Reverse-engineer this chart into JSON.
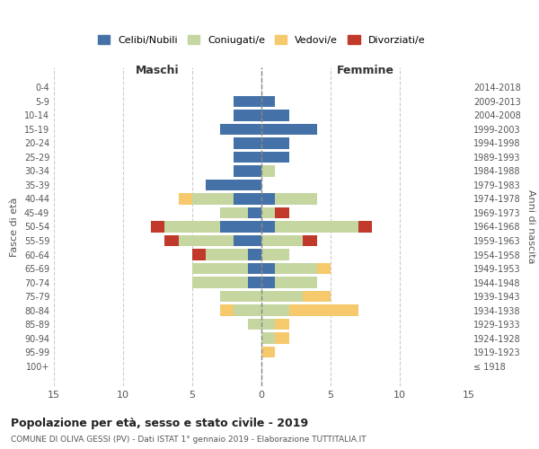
{
  "age_groups": [
    "0-4",
    "5-9",
    "10-14",
    "15-19",
    "20-24",
    "25-29",
    "30-34",
    "35-39",
    "40-44",
    "45-49",
    "50-54",
    "55-59",
    "60-64",
    "65-69",
    "70-74",
    "75-79",
    "80-84",
    "85-89",
    "90-94",
    "95-99",
    "100+"
  ],
  "birth_years": [
    "2014-2018",
    "2009-2013",
    "2004-2008",
    "1999-2003",
    "1994-1998",
    "1989-1993",
    "1984-1988",
    "1979-1983",
    "1974-1978",
    "1969-1973",
    "1964-1968",
    "1959-1963",
    "1954-1958",
    "1949-1953",
    "1944-1948",
    "1939-1943",
    "1934-1938",
    "1929-1933",
    "1924-1928",
    "1919-1923",
    "≤ 1918"
  ],
  "male": {
    "celibi": [
      0,
      2,
      2,
      3,
      2,
      2,
      2,
      4,
      2,
      1,
      3,
      2,
      1,
      1,
      1,
      0,
      0,
      0,
      0,
      0,
      0
    ],
    "coniugati": [
      0,
      0,
      0,
      0,
      0,
      0,
      0,
      0,
      3,
      2,
      4,
      4,
      3,
      4,
      4,
      3,
      2,
      1,
      0,
      0,
      0
    ],
    "vedovi": [
      0,
      0,
      0,
      0,
      0,
      0,
      0,
      0,
      1,
      0,
      0,
      0,
      0,
      0,
      0,
      0,
      1,
      0,
      0,
      0,
      0
    ],
    "divorziati": [
      0,
      0,
      0,
      0,
      0,
      0,
      0,
      0,
      0,
      0,
      1,
      1,
      1,
      0,
      0,
      0,
      0,
      0,
      0,
      0,
      0
    ]
  },
  "female": {
    "nubili": [
      0,
      1,
      2,
      4,
      2,
      2,
      0,
      0,
      1,
      0,
      1,
      0,
      0,
      1,
      1,
      0,
      0,
      0,
      0,
      0,
      0
    ],
    "coniugate": [
      0,
      0,
      0,
      0,
      0,
      0,
      1,
      0,
      3,
      1,
      6,
      3,
      2,
      3,
      3,
      3,
      2,
      1,
      1,
      0,
      0
    ],
    "vedove": [
      0,
      0,
      0,
      0,
      0,
      0,
      0,
      0,
      0,
      0,
      0,
      0,
      0,
      1,
      0,
      2,
      5,
      1,
      1,
      1,
      0
    ],
    "divorziate": [
      0,
      0,
      0,
      0,
      0,
      0,
      0,
      0,
      0,
      1,
      1,
      1,
      0,
      0,
      0,
      0,
      0,
      0,
      0,
      0,
      0
    ]
  },
  "colors": {
    "celibi": "#4472a8",
    "coniugati": "#c5d6a0",
    "vedovi": "#f5c96c",
    "divorziati": "#c0392b"
  },
  "legend_labels": [
    "Celibi/Nubili",
    "Coniugati/e",
    "Vedovi/e",
    "Divorziati/e"
  ],
  "title": "Popolazione per età, sesso e stato civile - 2019",
  "subtitle": "COMUNE DI OLIVA GESSI (PV) - Dati ISTAT 1° gennaio 2019 - Elaborazione TUTTITALIA.IT",
  "xlabel_left": "Maschi",
  "xlabel_right": "Femmine",
  "ylabel_left": "Fasce di età",
  "ylabel_right": "Anni di nascita",
  "xlim": 15,
  "background_color": "#ffffff",
  "grid_color": "#cccccc"
}
